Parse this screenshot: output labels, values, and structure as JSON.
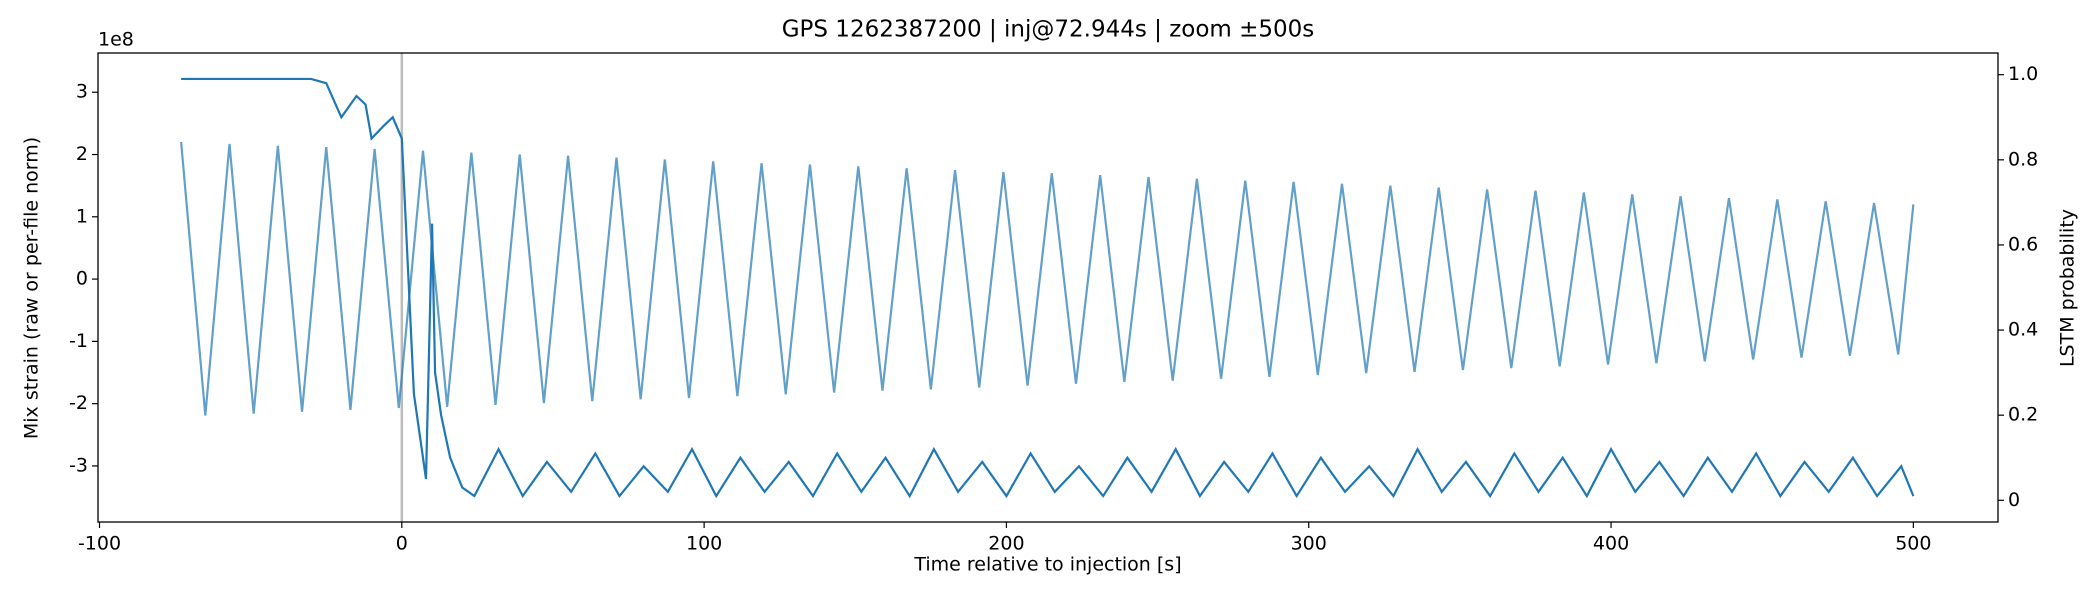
{
  "chart_data": {
    "type": "line",
    "title": "GPS 1262387200 | inj@72.944s | zoom ±500s",
    "x_label": "Time relative to injection [s]",
    "y_label": "Mix strain (raw or per-file norm)",
    "y2_label": "LSTM probability",
    "y_offset_label": "1e8",
    "xlim": [
      -100.5,
      528
    ],
    "xticks": [
      -100,
      0,
      100,
      200,
      300,
      400,
      500
    ],
    "ylim": [
      -3.9,
      3.63
    ],
    "yticks": [
      -3,
      -2,
      -1,
      0,
      1,
      2,
      3
    ],
    "y2lim": [
      -0.051,
      1.051
    ],
    "y2ticks": [
      0.0,
      0.2,
      0.4,
      0.6,
      0.8,
      {
        "value": 1.0,
        "label": "1.0"
      }
    ],
    "vlines": [
      0
    ],
    "vline_color": "#bbbbbb",
    "series": [
      {
        "name": "Mix strain",
        "color": "#1f77b4",
        "opacity": 0.7,
        "x": [
          -73,
          -65,
          -57,
          -49,
          -41,
          -33,
          -25,
          -17,
          -9,
          -1,
          7,
          15,
          23,
          31,
          39,
          47,
          55,
          63,
          71,
          79,
          87,
          95,
          103,
          111,
          119,
          127,
          135,
          143,
          151,
          159,
          167,
          175,
          183,
          191,
          199,
          207,
          215,
          223,
          231,
          239,
          247,
          255,
          263,
          271,
          279,
          287,
          295,
          303,
          311,
          319,
          327,
          335,
          343,
          351,
          359,
          367,
          375,
          383,
          391,
          399,
          407,
          415,
          423,
          431,
          439,
          447,
          455,
          463,
          471,
          479,
          487,
          495,
          500
        ],
        "values": [
          2.2,
          -2.19,
          2.17,
          -2.16,
          2.14,
          -2.13,
          2.12,
          -2.1,
          2.09,
          -2.07,
          2.06,
          -2.05,
          2.03,
          -2.02,
          2.0,
          -1.99,
          1.98,
          -1.96,
          1.95,
          -1.93,
          1.92,
          -1.91,
          1.89,
          -1.88,
          1.86,
          -1.85,
          1.84,
          -1.82,
          1.81,
          -1.79,
          1.78,
          -1.77,
          1.75,
          -1.74,
          1.72,
          -1.71,
          1.7,
          -1.68,
          1.67,
          -1.65,
          1.64,
          -1.63,
          1.61,
          -1.6,
          1.58,
          -1.57,
          1.56,
          -1.54,
          1.53,
          -1.51,
          1.5,
          -1.49,
          1.47,
          -1.46,
          1.44,
          -1.43,
          1.42,
          -1.4,
          1.39,
          -1.37,
          1.36,
          -1.35,
          1.33,
          -1.32,
          1.3,
          -1.29,
          1.28,
          -1.26,
          1.25,
          -1.23,
          1.22,
          -1.21,
          1.2
        ]
      },
      {
        "name": "LSTM probability",
        "color": "#1f77b4",
        "opacity": 1,
        "axis": "y2",
        "x": [
          -73,
          -50,
          -30,
          -25,
          -20,
          -15,
          -12,
          -10,
          -6,
          -3,
          0,
          2,
          4,
          6,
          8,
          10,
          11,
          13,
          16,
          20,
          24,
          32,
          40,
          48,
          56,
          64,
          72,
          80,
          88,
          96,
          104,
          112,
          120,
          128,
          136,
          144,
          152,
          160,
          168,
          176,
          184,
          192,
          200,
          208,
          216,
          224,
          232,
          240,
          248,
          256,
          264,
          272,
          280,
          288,
          296,
          304,
          312,
          320,
          328,
          336,
          344,
          352,
          360,
          368,
          376,
          384,
          392,
          400,
          408,
          416,
          424,
          432,
          440,
          448,
          456,
          464,
          472,
          480,
          488,
          496,
          500
        ],
        "values": [
          0.99,
          0.99,
          0.99,
          0.98,
          0.9,
          0.95,
          0.93,
          0.85,
          0.88,
          0.9,
          0.85,
          0.55,
          0.25,
          0.15,
          0.05,
          0.65,
          0.3,
          0.2,
          0.1,
          0.03,
          0.01,
          0.12,
          0.01,
          0.09,
          0.02,
          0.11,
          0.01,
          0.08,
          0.02,
          0.12,
          0.01,
          0.1,
          0.02,
          0.09,
          0.01,
          0.11,
          0.02,
          0.1,
          0.01,
          0.12,
          0.02,
          0.09,
          0.01,
          0.11,
          0.02,
          0.08,
          0.01,
          0.1,
          0.02,
          0.12,
          0.01,
          0.09,
          0.02,
          0.11,
          0.01,
          0.1,
          0.02,
          0.08,
          0.01,
          0.12,
          0.02,
          0.09,
          0.01,
          0.11,
          0.02,
          0.1,
          0.01,
          0.12,
          0.02,
          0.09,
          0.01,
          0.1,
          0.02,
          0.11,
          0.01,
          0.09,
          0.02,
          0.1,
          0.01,
          0.08,
          0.01
        ]
      }
    ]
  }
}
